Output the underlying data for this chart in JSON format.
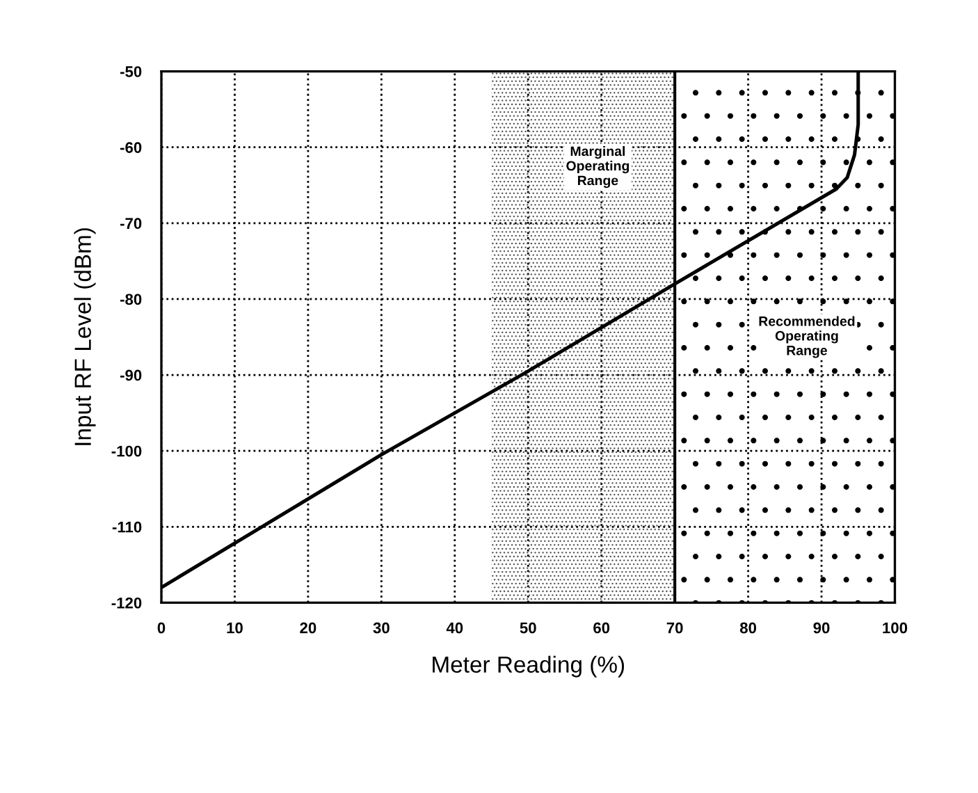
{
  "chart_data": {
    "type": "line",
    "xlabel": "Meter Reading (%)",
    "ylabel": "Input RF Level (dBm)",
    "x": [
      0,
      30,
      50,
      70,
      92,
      93.5,
      94.5,
      95,
      95
    ],
    "series": [
      {
        "color": "#000000",
        "values": [
          -118,
          -100.5,
          -89.5,
          -78,
          -65.5,
          -64,
          -61,
          -57,
          -50
        ]
      }
    ],
    "xlim": [
      0,
      100
    ],
    "ylim": [
      -120,
      -50
    ],
    "xticks": [
      0,
      10,
      20,
      30,
      40,
      50,
      60,
      70,
      80,
      90,
      100
    ],
    "yticks": [
      -120,
      -110,
      -100,
      -90,
      -80,
      -70,
      -60,
      -50
    ],
    "grid": true,
    "marker": "none",
    "line_style": "solid",
    "bands": [
      {
        "axis": "x",
        "from": 45,
        "to": 70,
        "label": "Marginal\nOperating\nRange",
        "color": "#555555"
      },
      {
        "axis": "x",
        "from": 70,
        "to": 100,
        "label": "Recommended\nOperating\nRange",
        "color": "#000000"
      }
    ],
    "ref_lines": [
      {
        "axis": "x",
        "value": 70,
        "color": "#000000",
        "line_style": "solid"
      }
    ]
  }
}
